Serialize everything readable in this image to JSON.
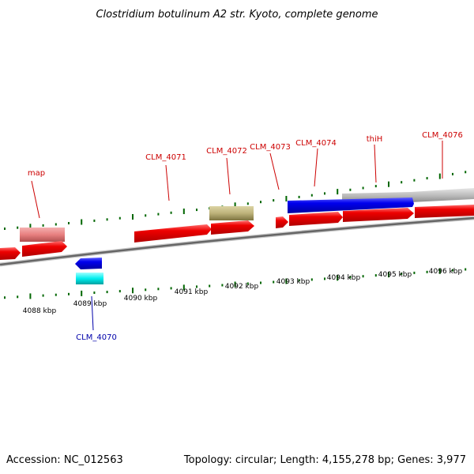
{
  "title": "Clostridium botulinum A2 str. Kyoto, complete genome",
  "footer": {
    "accession": "Accession: NC_012563",
    "topology": "Topology: circular; Length: 4,155,278 bp; Genes: 3,977"
  },
  "colors": {
    "plus_strand": "#ee0000",
    "minus_strand": "#0000ee",
    "pink_feature": "#e88080",
    "khaki_feature": "#bdb27a",
    "gray_feature": "#bbbbbb",
    "cyan_feature": "#00eeee",
    "tick_marks": "#006600",
    "label_red": "#cc0000",
    "label_blue": "#0000aa"
  },
  "kbp_labels": [
    "4088 kbp",
    "4089 kbp",
    "4090 kbp",
    "4091 kbp",
    "4092 kbp",
    "4093 kbp",
    "4094 kbp",
    "4095 kbp",
    "4096 kbp"
  ],
  "gene_labels": [
    {
      "name": "map",
      "color": "red"
    },
    {
      "name": "CLM_4070",
      "color": "blue"
    },
    {
      "name": "CLM_4071",
      "color": "red"
    },
    {
      "name": "CLM_4072",
      "color": "red"
    },
    {
      "name": "CLM_4073",
      "color": "red"
    },
    {
      "name": "CLM_4074",
      "color": "red"
    },
    {
      "name": "thiH",
      "color": "red"
    },
    {
      "name": "CLM_4076",
      "color": "red"
    }
  ]
}
